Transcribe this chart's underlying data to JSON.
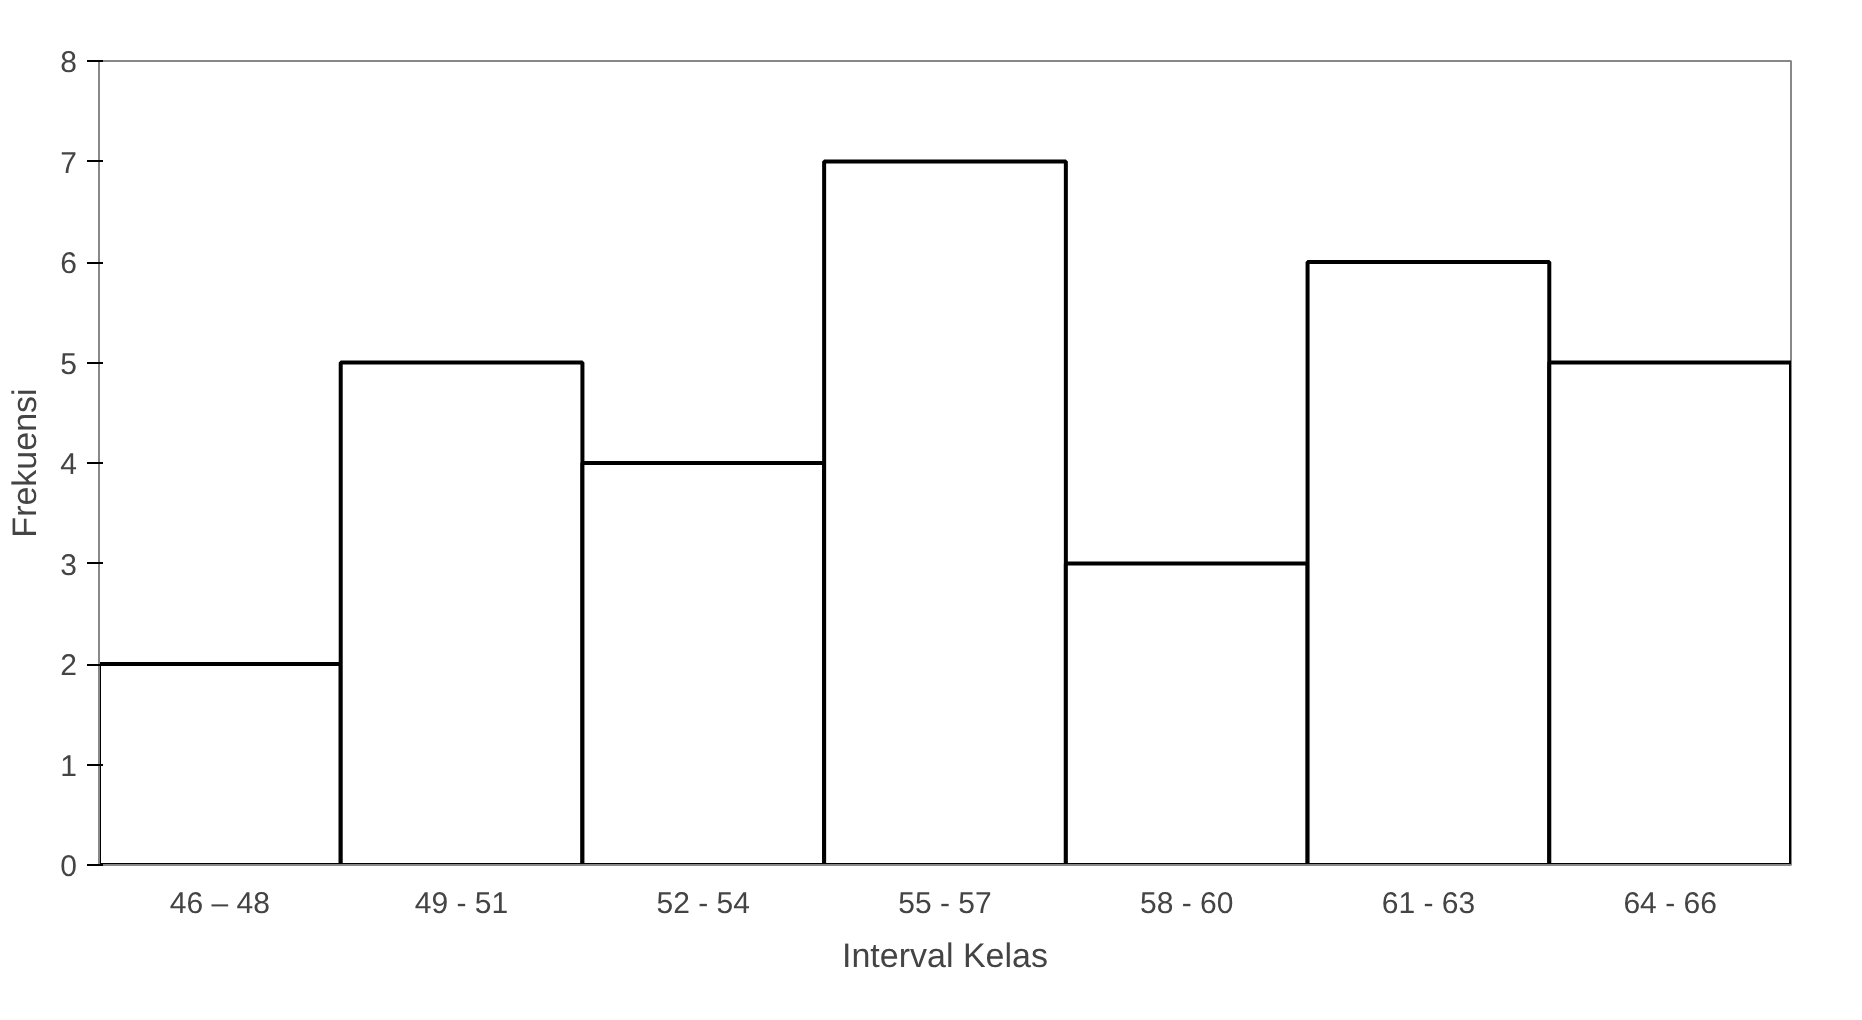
{
  "chart_data": {
    "type": "bar",
    "xlabel": "Interval Kelas",
    "ylabel": "Frekuensi",
    "categories": [
      "46 – 48",
      "49 - 51",
      "52 - 54",
      "55 - 57",
      "58 - 60",
      "61 - 63",
      "64 - 66"
    ],
    "values": [
      2,
      5,
      4,
      7,
      3,
      6,
      5
    ],
    "color": "#ffffff",
    "ylim": [
      0,
      8
    ],
    "yticks": [
      0,
      1,
      2,
      3,
      4,
      5,
      6,
      7,
      8
    ],
    "grid": false
  }
}
